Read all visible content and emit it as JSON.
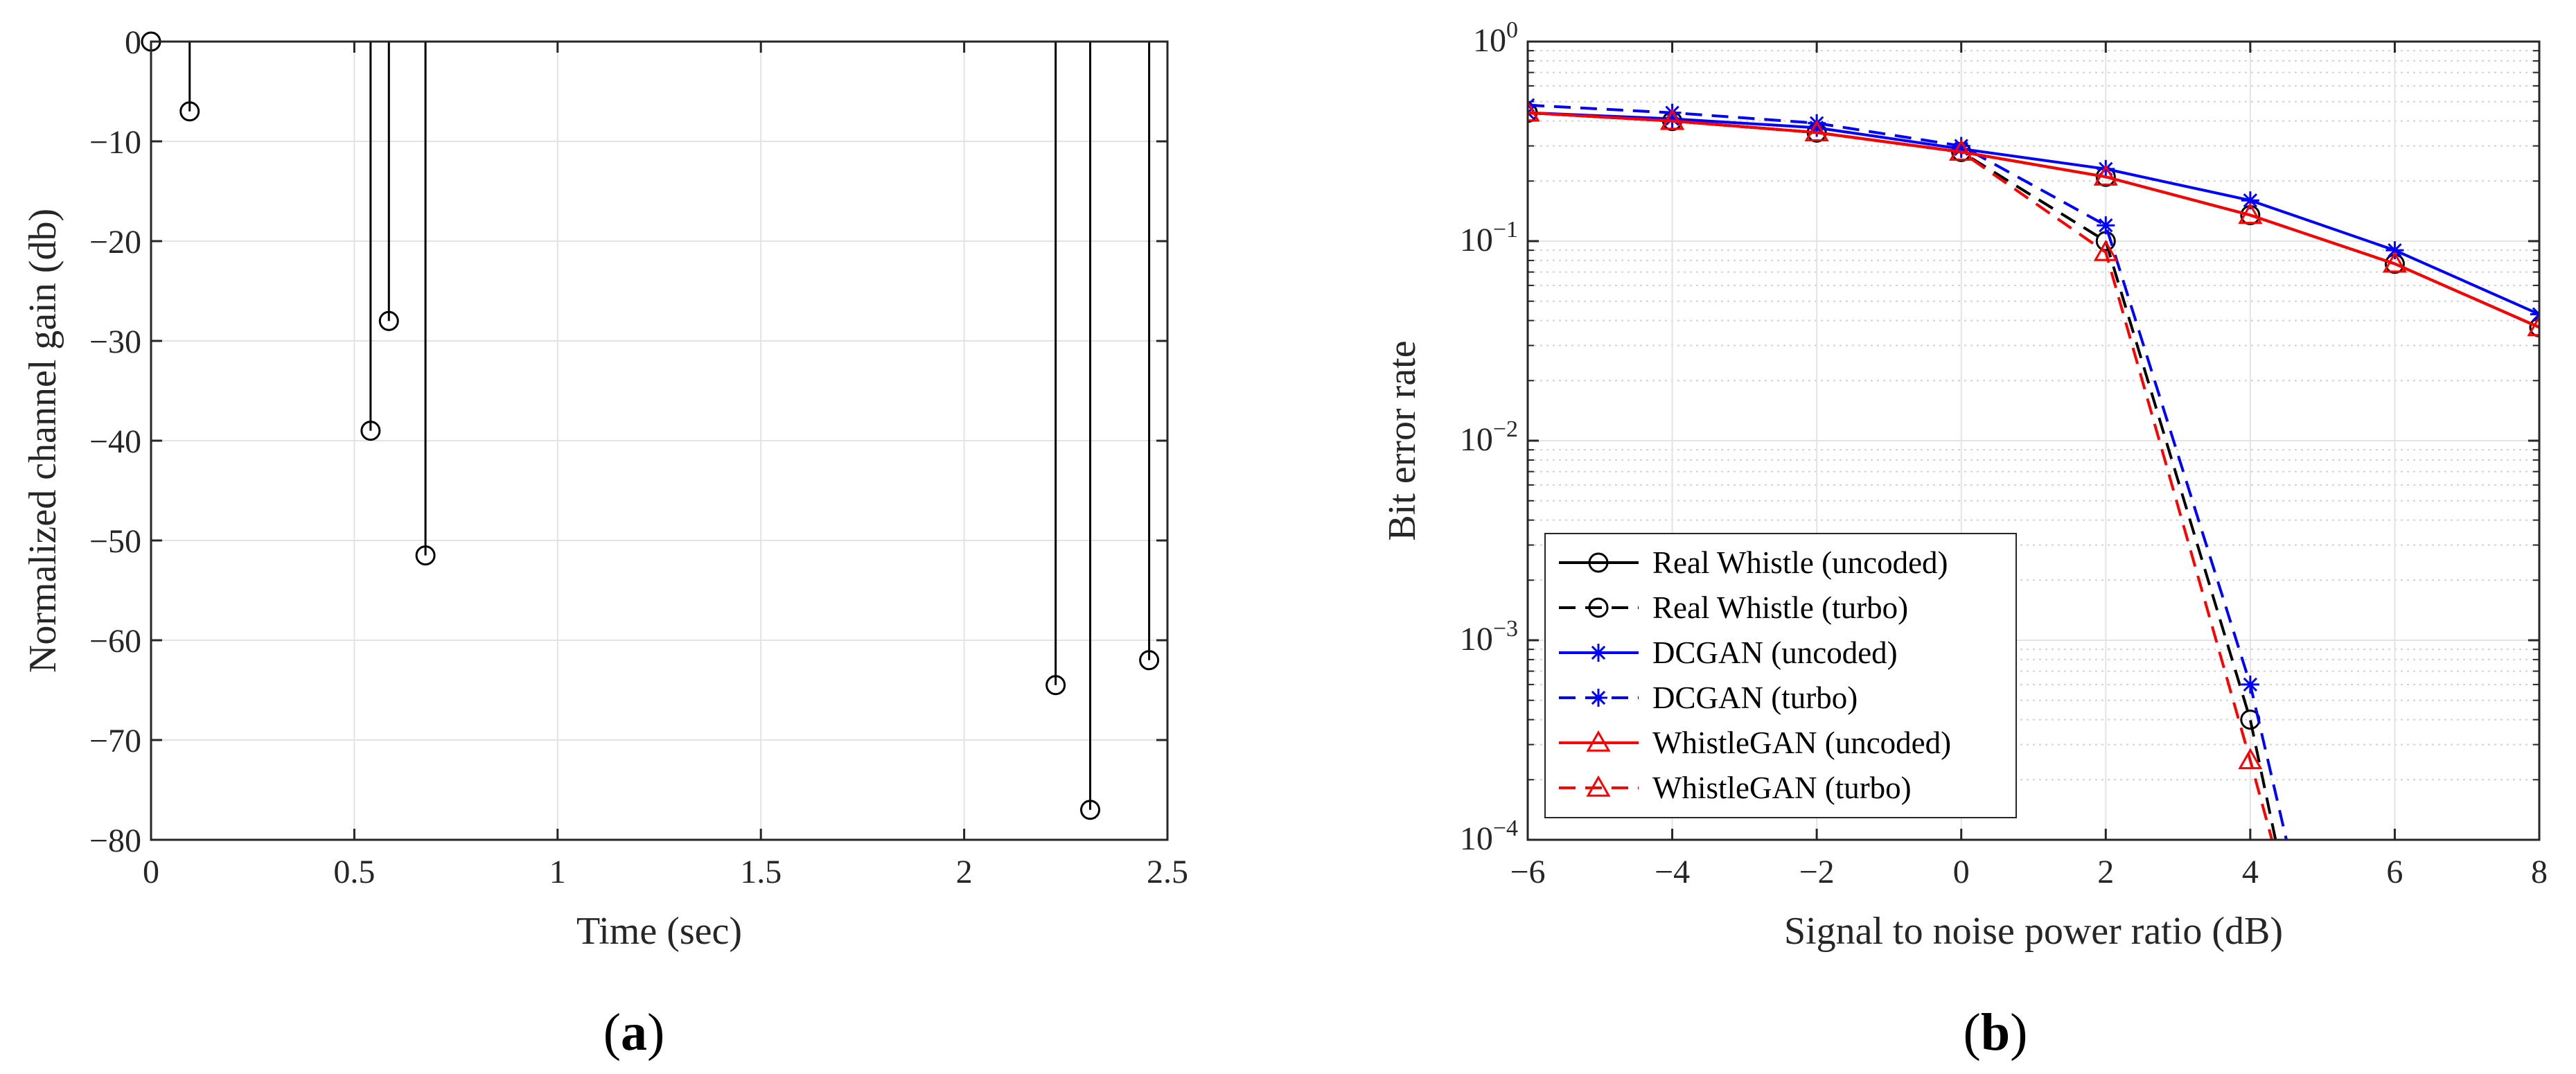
{
  "chart_data": [
    {
      "panel": "(a)",
      "type": "stem",
      "xlabel": "Time (sec)",
      "ylabel": "Normalized channel gain (db)",
      "xlim": [
        0,
        2.5
      ],
      "ylim": [
        -80,
        0
      ],
      "xticks": [
        0,
        0.5,
        1,
        1.5,
        2,
        2.5
      ],
      "xtick_labels": [
        "0",
        "0.5",
        "1",
        "1.5",
        "2",
        "2.5"
      ],
      "yticks": [
        0,
        -10,
        -20,
        -30,
        -40,
        -50,
        -60,
        -70,
        -80
      ],
      "ytick_labels": [
        "0",
        "−10",
        "−20",
        "−30",
        "−40",
        "−50",
        "−60",
        "−70",
        "−80"
      ],
      "grid": true,
      "x": [
        0.0,
        0.095,
        0.54,
        0.585,
        0.675,
        2.225,
        2.31,
        2.455
      ],
      "y": [
        0,
        -7,
        -39,
        -28,
        -51.5,
        -64.5,
        -77,
        -62
      ]
    },
    {
      "panel": "(b)",
      "type": "line",
      "yscale": "log",
      "xlabel": "Signal to noise power ratio (dB)",
      "ylabel": "Bit error rate",
      "xlim": [
        -6,
        8
      ],
      "ylim": [
        0.0001,
        1
      ],
      "xticks": [
        -6,
        -4,
        -2,
        0,
        2,
        4,
        6,
        8
      ],
      "xtick_labels": [
        "−6",
        "−4",
        "−2",
        "0",
        "2",
        "4",
        "6",
        "8"
      ],
      "yticks": [
        {
          "base": "10",
          "exp": "0"
        },
        {
          "base": "10",
          "exp": "−1"
        },
        {
          "base": "10",
          "exp": "−2"
        },
        {
          "base": "10",
          "exp": "−3"
        },
        {
          "base": "10",
          "exp": "−4"
        }
      ],
      "grid": true,
      "legend_position": "bottom-left",
      "series": [
        {
          "name": "Real Whistle (uncoded)",
          "color": "#000000",
          "dash": "solid",
          "marker": "circle",
          "x": [
            -6,
            -4,
            -2,
            0,
            2,
            4,
            6,
            8
          ],
          "y": [
            0.44,
            0.4,
            0.35,
            0.28,
            0.21,
            0.135,
            0.077,
            0.037
          ]
        },
        {
          "name": "Real Whistle (turbo)",
          "color": "#000000",
          "dash": "dashed",
          "marker": "circle",
          "x": [
            -6,
            -4,
            -2,
            0,
            2,
            4,
            4.35
          ],
          "y": [
            0.44,
            0.4,
            0.35,
            0.28,
            0.1,
            0.0004,
            0.0001
          ]
        },
        {
          "name": "DCGAN (uncoded)",
          "color": "#0000ff",
          "dash": "solid",
          "marker": "star",
          "x": [
            -6,
            -4,
            -2,
            0,
            2,
            4,
            6,
            8
          ],
          "y": [
            0.44,
            0.41,
            0.37,
            0.29,
            0.23,
            0.16,
            0.09,
            0.043
          ]
        },
        {
          "name": "DCGAN (turbo)",
          "color": "#0000ff",
          "dash": "dashed",
          "marker": "star",
          "x": [
            -6,
            -4,
            -2,
            0,
            2,
            4,
            4.5
          ],
          "y": [
            0.48,
            0.44,
            0.39,
            0.3,
            0.12,
            0.0006,
            0.0001
          ]
        },
        {
          "name": "WhistleGAN (uncoded)",
          "color": "#ff0000",
          "dash": "solid",
          "marker": "triangle",
          "x": [
            -6,
            -4,
            -2,
            0,
            2,
            4,
            6,
            8
          ],
          "y": [
            0.44,
            0.4,
            0.35,
            0.28,
            0.21,
            0.135,
            0.077,
            0.037
          ]
        },
        {
          "name": "WhistleGAN (turbo)",
          "color": "#ff0000",
          "dash": "dashed",
          "marker": "triangle",
          "x": [
            -6,
            -4,
            -2,
            0,
            2,
            4,
            4.3
          ],
          "y": [
            0.44,
            0.4,
            0.35,
            0.28,
            0.088,
            0.00025,
            0.0001
          ]
        }
      ]
    }
  ],
  "panel_labels": {
    "a": {
      "open": "(",
      "letter": "a",
      "close": ")"
    },
    "b": {
      "open": "(",
      "letter": "b",
      "close": ")"
    }
  }
}
